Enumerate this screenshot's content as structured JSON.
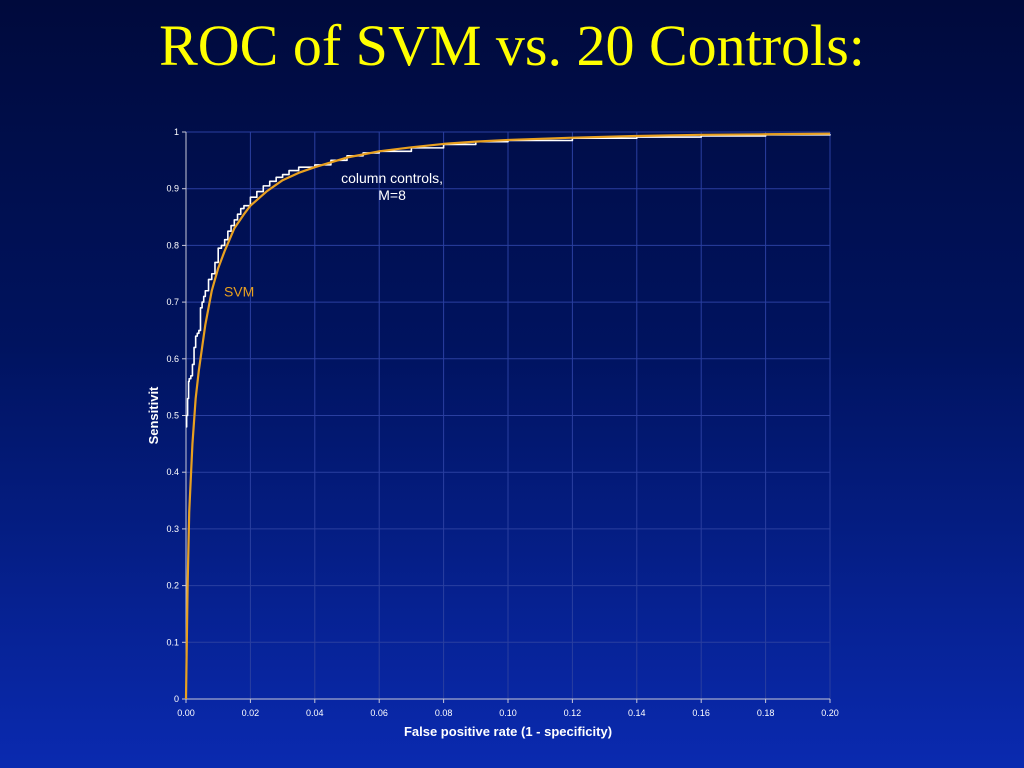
{
  "slide": {
    "title": "ROC of SVM vs. 20 Controls:"
  },
  "chart_data": {
    "type": "line",
    "xlabel": "False positive rate (1 - specificity)",
    "ylabel": "Sensitivit",
    "xlim": [
      0,
      0.2
    ],
    "ylim": [
      0,
      1
    ],
    "x_ticks": [
      "0.00",
      "0.02",
      "0.04",
      "0.06",
      "0.08",
      "0.10",
      "0.12",
      "0.14",
      "0.16",
      "0.18",
      "0.20"
    ],
    "y_ticks": [
      "0",
      "0.1",
      "0.2",
      "0.3",
      "0.4",
      "0.5",
      "0.6",
      "0.7",
      "0.8",
      "0.9",
      "1"
    ],
    "grid": true,
    "colors": {
      "svm": "#e8a020",
      "column_controls": "#ffffff",
      "grid": "#2a3fa0",
      "axis": "#c8c8d8"
    },
    "annotations": [
      {
        "text_lines": [
          "column controls,",
          "M=8"
        ],
        "x": 0.064,
        "y": 0.91,
        "color": "#ffffff"
      },
      {
        "text_lines": [
          "SVM"
        ],
        "x": 0.0165,
        "y": 0.71,
        "color": "#e8a020"
      }
    ],
    "series": [
      {
        "key": "column_controls",
        "x": [
          0.0,
          0.0002,
          0.0005,
          0.0008,
          0.001,
          0.0015,
          0.002,
          0.0025,
          0.003,
          0.0035,
          0.004,
          0.0045,
          0.005,
          0.0055,
          0.006,
          0.007,
          0.008,
          0.009,
          0.01,
          0.011,
          0.012,
          0.013,
          0.014,
          0.015,
          0.016,
          0.017,
          0.018,
          0.02,
          0.022,
          0.024,
          0.026,
          0.028,
          0.03,
          0.032,
          0.035,
          0.04,
          0.045,
          0.05,
          0.055,
          0.06,
          0.07,
          0.08,
          0.09,
          0.1,
          0.12,
          0.14,
          0.16,
          0.18,
          0.2
        ],
        "y": [
          0.48,
          0.5,
          0.53,
          0.56,
          0.565,
          0.57,
          0.59,
          0.62,
          0.64,
          0.645,
          0.65,
          0.69,
          0.7,
          0.71,
          0.72,
          0.74,
          0.75,
          0.77,
          0.795,
          0.8,
          0.81,
          0.825,
          0.835,
          0.845,
          0.855,
          0.865,
          0.87,
          0.885,
          0.895,
          0.905,
          0.913,
          0.92,
          0.925,
          0.932,
          0.938,
          0.942,
          0.95,
          0.958,
          0.963,
          0.966,
          0.972,
          0.978,
          0.983,
          0.985,
          0.989,
          0.991,
          0.993,
          0.995,
          0.996
        ]
      },
      {
        "key": "svm",
        "x": [
          0.0,
          0.0005,
          0.001,
          0.002,
          0.003,
          0.004,
          0.005,
          0.006,
          0.008,
          0.01,
          0.012,
          0.015,
          0.018,
          0.02,
          0.025,
          0.03,
          0.035,
          0.04,
          0.05,
          0.06,
          0.07,
          0.08,
          0.09,
          0.1,
          0.12,
          0.14,
          0.16,
          0.18,
          0.2
        ],
        "y": [
          0.0,
          0.2,
          0.33,
          0.45,
          0.53,
          0.58,
          0.62,
          0.66,
          0.72,
          0.76,
          0.79,
          0.83,
          0.855,
          0.87,
          0.895,
          0.915,
          0.928,
          0.938,
          0.955,
          0.966,
          0.973,
          0.979,
          0.983,
          0.986,
          0.99,
          0.993,
          0.995,
          0.996,
          0.997
        ]
      }
    ]
  }
}
